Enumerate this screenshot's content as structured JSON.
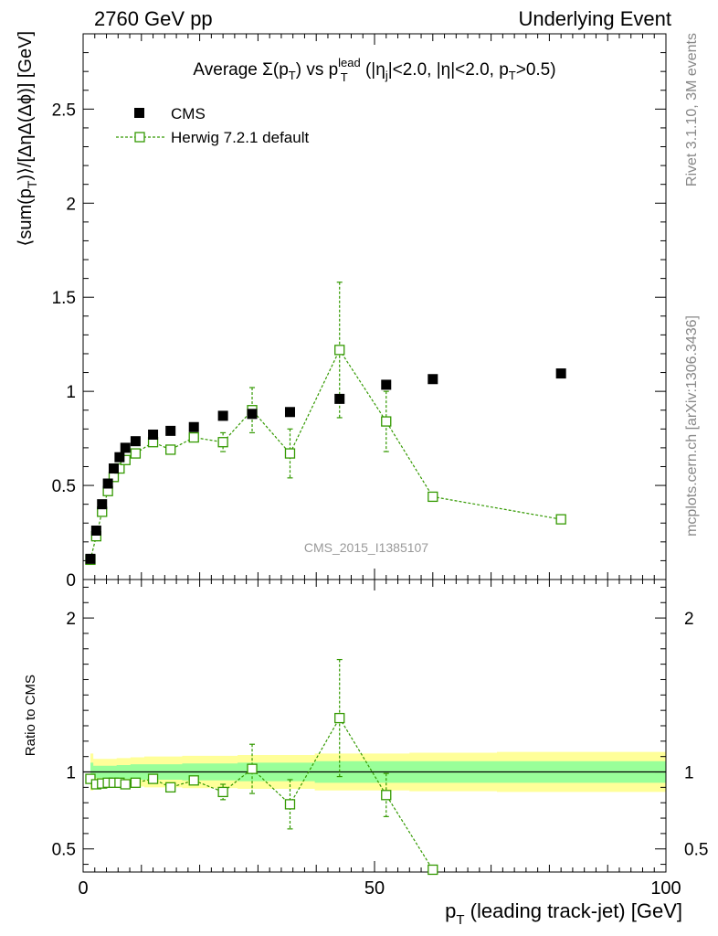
{
  "header": {
    "left": "2760 GeV pp",
    "right": "Underlying Event"
  },
  "side_labels": {
    "rivet": "Rivet 3.1.10,  3M events",
    "mcplots": "mcplots.cern.ch [arXiv:1306.3436]"
  },
  "watermark": "CMS_2015_I1385107",
  "colors": {
    "mc": "#339900",
    "band_outer": "#ffff99",
    "band_inner": "#99ff99",
    "data": "#000000"
  },
  "chart_data": [
    {
      "type": "scatter",
      "title_parts": {
        "average": "Average ",
        "sigma": "Σ(p",
        "t_sub": "T",
        "close": ")",
        "vs": " vs p",
        "lead_sup": "lead",
        "t_sub2": "T",
        "cuts1": " (|η",
        "j_sub": "j",
        "cuts2": "|<2.0, |η|<2.0, p",
        "t_sub3": "T",
        "cuts3": ">0.5)"
      },
      "ylabel": "⟨sum(p_T)⟩/[ΔηΔ(Δϕ)] [GeV]",
      "ylabel_parts": {
        "a": "⟨sum(p",
        "sub": "T",
        "b": ")⟩/[ΔηΔ(Δϕ)] [GeV]"
      },
      "xlim": [
        0,
        100
      ],
      "ylim": [
        0,
        2.9
      ],
      "yticks": [
        0,
        0.5,
        1,
        1.5,
        2,
        2.5
      ],
      "ytick_labels": [
        "0",
        "0.5",
        "1",
        "1.5",
        "2",
        "2.5"
      ],
      "legend": [
        {
          "name": "CMS",
          "marker": "filled-square"
        },
        {
          "name": "Herwig 7.2.1 default",
          "marker": "open-square-dashed"
        }
      ],
      "series": [
        {
          "name": "CMS",
          "x": [
            1.25,
            2.25,
            3.25,
            4.25,
            5.25,
            6.25,
            7.25,
            9.0,
            12.0,
            15.0,
            19.0,
            24.0,
            29.0,
            35.5,
            44.0,
            52.0,
            60.0,
            82.0
          ],
          "y": [
            0.11,
            0.26,
            0.4,
            0.51,
            0.59,
            0.65,
            0.7,
            0.735,
            0.77,
            0.79,
            0.81,
            0.87,
            0.88,
            0.89,
            0.96,
            1.035,
            1.065,
            1.095
          ]
        },
        {
          "name": "Herwig 7.2.1 default",
          "x": [
            1.25,
            2.25,
            3.25,
            4.25,
            5.25,
            6.25,
            7.25,
            9.0,
            12.0,
            15.0,
            19.0,
            24.0,
            29.0,
            35.5,
            44.0,
            52.0,
            60.0,
            82.0
          ],
          "y": [
            0.105,
            0.23,
            0.36,
            0.47,
            0.545,
            0.59,
            0.635,
            0.67,
            0.73,
            0.69,
            0.755,
            0.73,
            0.9,
            0.67,
            1.22,
            0.84,
            0.44,
            0.32
          ],
          "err": [
            0.005,
            0.01,
            0.012,
            0.012,
            0.012,
            0.012,
            0.012,
            0.015,
            0.02,
            0.02,
            0.02,
            0.05,
            0.12,
            0.13,
            0.36,
            0.16,
            0.0,
            0.0
          ]
        }
      ]
    },
    {
      "type": "scatter",
      "ylabel": "Ratio to CMS",
      "xlabel_parts": {
        "a": "p",
        "sub": "T",
        "b": " (leading track-jet) [GeV]"
      },
      "xlabel": "p_T (leading track-jet) [GeV]",
      "xlim": [
        0,
        100
      ],
      "ylim": [
        0.35,
        2.25
      ],
      "xticks": [
        0,
        50,
        100
      ],
      "xtick_labels": [
        "0",
        "50",
        "100"
      ],
      "yticks": [
        0.5,
        1,
        2
      ],
      "ytick_labels": [
        "0.5",
        "1",
        "2"
      ],
      "bands": {
        "x": [
          1.25,
          2.25,
          3.25,
          4.25,
          5.25,
          6.25,
          7.25,
          9.0,
          12.0,
          15.0,
          19.0,
          24.0,
          29.0,
          35.5,
          44.0,
          52.0,
          60.0,
          82.0
        ],
        "outer": [
          0.12,
          0.085,
          0.085,
          0.085,
          0.085,
          0.09,
          0.09,
          0.095,
          0.1,
          0.1,
          0.105,
          0.105,
          0.11,
          0.11,
          0.12,
          0.12,
          0.125,
          0.13
        ],
        "inner": [
          0.06,
          0.04,
          0.04,
          0.04,
          0.04,
          0.045,
          0.045,
          0.05,
          0.05,
          0.05,
          0.055,
          0.055,
          0.06,
          0.06,
          0.07,
          0.07,
          0.07,
          0.07
        ]
      },
      "series": [
        {
          "name": "Herwig 7.2.1 default",
          "x": [
            1.25,
            2.25,
            3.25,
            4.25,
            5.25,
            6.25,
            7.25,
            9.0,
            12.0,
            15.0,
            19.0,
            24.0,
            29.0,
            35.5,
            44.0,
            52.0,
            60.0
          ],
          "y": [
            0.955,
            0.92,
            0.925,
            0.93,
            0.93,
            0.93,
            0.92,
            0.93,
            0.955,
            0.9,
            0.945,
            0.87,
            1.02,
            0.79,
            1.35,
            0.85,
            0.365
          ],
          "err": [
            0.005,
            0.01,
            0.01,
            0.01,
            0.01,
            0.01,
            0.01,
            0.015,
            0.02,
            0.02,
            0.02,
            0.05,
            0.16,
            0.16,
            0.38,
            0.14,
            0.0
          ]
        }
      ]
    }
  ]
}
